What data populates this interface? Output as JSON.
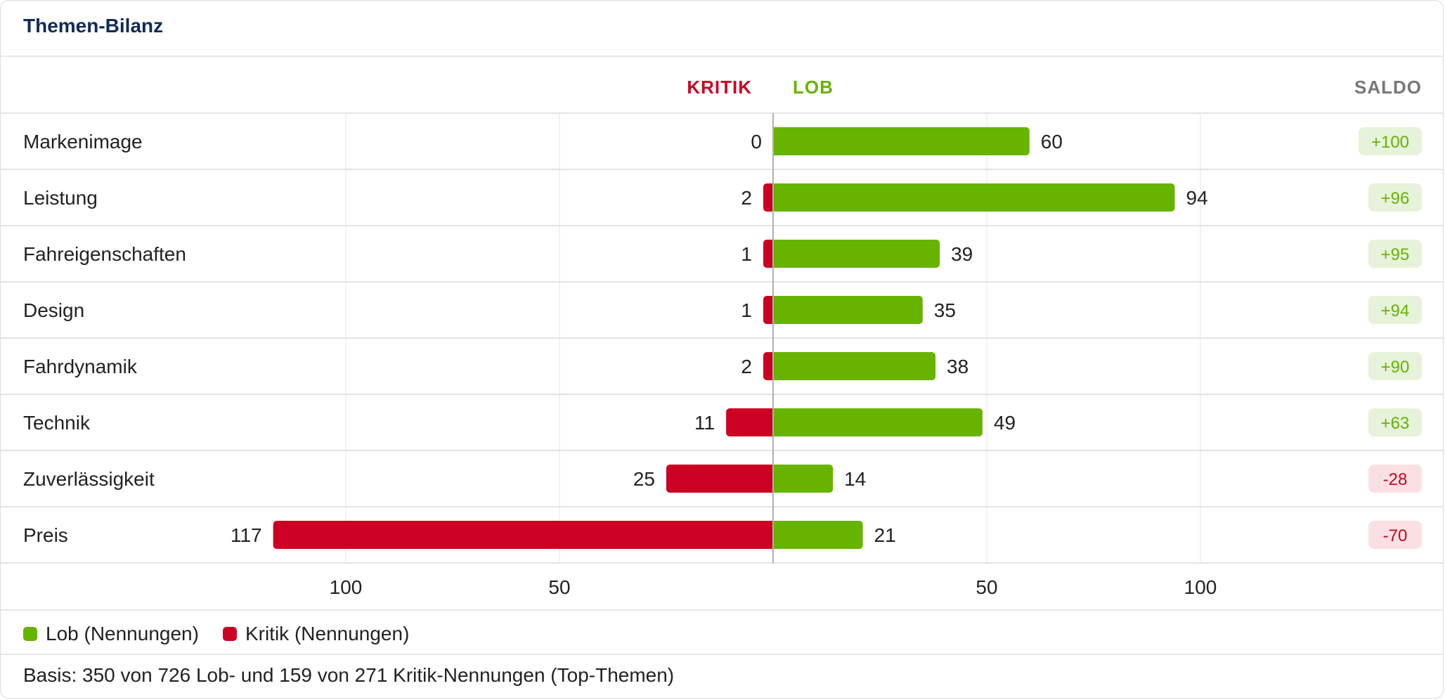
{
  "card": {
    "title": "Themen-Bilanz"
  },
  "colors": {
    "lob": "#66b300",
    "kritik": "#cc0022",
    "saldo_pos_bg": "#e6f2d9",
    "saldo_neg_bg": "#fbe0e3",
    "saldo_header": "#777777"
  },
  "chart_data": {
    "type": "bar",
    "orientation": "diverging-horizontal",
    "header": {
      "kritik": "KRITIK",
      "lob": "LOB",
      "saldo": "SALDO"
    },
    "categories": [
      "Markenimage",
      "Leistung",
      "Fahreigenschaften",
      "Design",
      "Fahrdynamik",
      "Technik",
      "Zuverlässigkeit",
      "Preis"
    ],
    "series": [
      {
        "name": "Kritik",
        "values": [
          0,
          2,
          1,
          1,
          2,
          11,
          25,
          117
        ]
      },
      {
        "name": "Lob",
        "values": [
          60,
          94,
          39,
          35,
          38,
          49,
          14,
          21
        ]
      }
    ],
    "saldo": [
      "+100",
      "+96",
      "+95",
      "+94",
      "+90",
      "+63",
      "-28",
      "-70"
    ],
    "axis_ticks": [
      {
        "value": -100,
        "label": "100"
      },
      {
        "value": -50,
        "label": "50"
      },
      {
        "value": 50,
        "label": "50"
      },
      {
        "value": 100,
        "label": "100"
      }
    ],
    "grid": true
  },
  "legend": {
    "lob": "Lob (Nennungen)",
    "kritik": "Kritik (Nennungen)"
  },
  "footnote": "Basis: 350 von 726 Lob- und 159 von 271 Kritik-Nennungen (Top-Themen)"
}
